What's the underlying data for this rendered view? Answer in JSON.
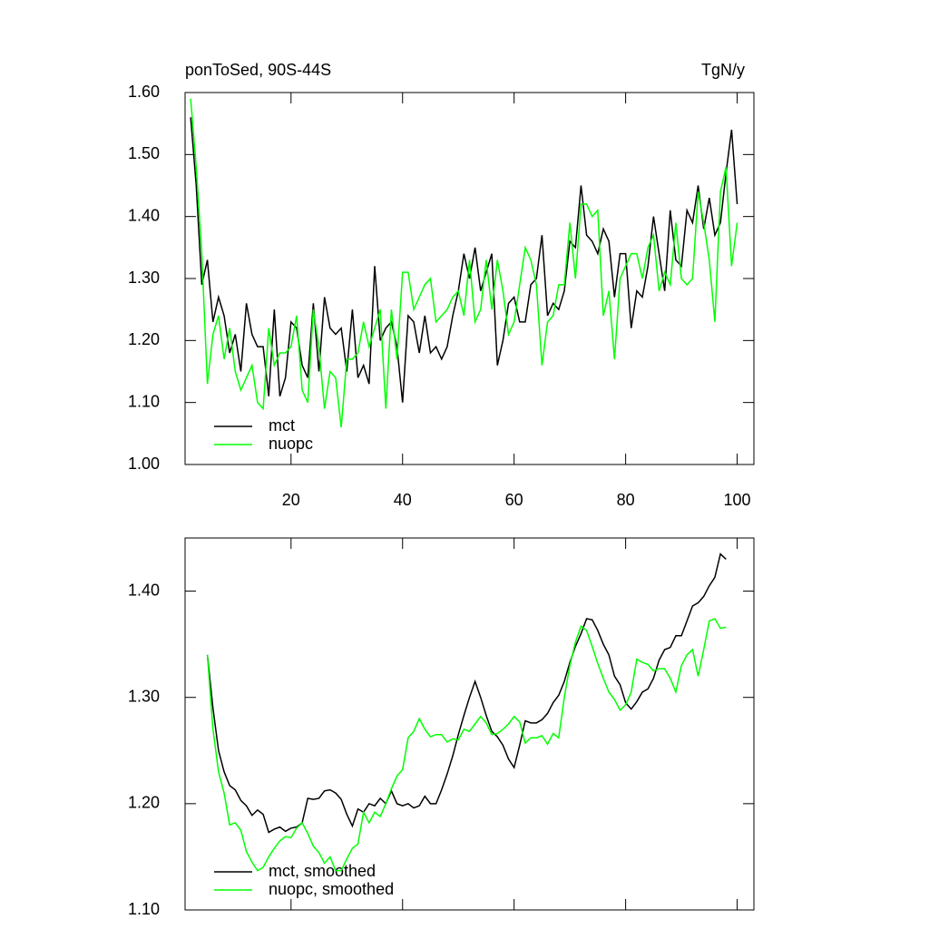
{
  "chart_data": [
    {
      "type": "line",
      "title": "ponToSed, 90S-44S",
      "units_label": "TgN/y",
      "xlim": [
        1,
        103
      ],
      "ylim": [
        1.0,
        1.6
      ],
      "xticks": [
        20,
        40,
        60,
        80,
        100
      ],
      "xtick_labels_shown": true,
      "yticks": [
        {
          "value": 1.0,
          "label": "1.00"
        },
        {
          "value": 1.1,
          "label": "1.10"
        },
        {
          "value": 1.2,
          "label": "1.20"
        },
        {
          "value": 1.3,
          "label": "1.30"
        },
        {
          "value": 1.4,
          "label": "1.40"
        },
        {
          "value": 1.5,
          "label": "1.50"
        },
        {
          "value": 1.6,
          "label": "1.60"
        }
      ],
      "legend": "lower left",
      "x": [
        2,
        3,
        4,
        5,
        6,
        7,
        8,
        9,
        10,
        11,
        12,
        13,
        14,
        15,
        16,
        17,
        18,
        19,
        20,
        21,
        22,
        23,
        24,
        25,
        26,
        27,
        28,
        29,
        30,
        31,
        32,
        33,
        34,
        35,
        36,
        37,
        38,
        39,
        40,
        41,
        42,
        43,
        44,
        45,
        46,
        47,
        48,
        49,
        50,
        51,
        52,
        53,
        54,
        55,
        56,
        57,
        58,
        59,
        60,
        61,
        62,
        63,
        64,
        65,
        66,
        67,
        68,
        69,
        70,
        71,
        72,
        73,
        74,
        75,
        76,
        77,
        78,
        79,
        80,
        81,
        82,
        83,
        84,
        85,
        86,
        87,
        88,
        89,
        90,
        91,
        92,
        93,
        94,
        95,
        96,
        97,
        98,
        99,
        100
      ],
      "series": [
        {
          "name": "mct",
          "color": "#000000",
          "values": [
            1.56,
            1.45,
            1.29,
            1.33,
            1.23,
            1.27,
            1.24,
            1.18,
            1.21,
            1.15,
            1.26,
            1.21,
            1.19,
            1.19,
            1.11,
            1.25,
            1.11,
            1.14,
            1.23,
            1.22,
            1.16,
            1.14,
            1.26,
            1.15,
            1.27,
            1.22,
            1.21,
            1.22,
            1.15,
            1.25,
            1.14,
            1.16,
            1.13,
            1.32,
            1.2,
            1.22,
            1.23,
            1.19,
            1.1,
            1.24,
            1.23,
            1.18,
            1.24,
            1.18,
            1.19,
            1.17,
            1.19,
            1.24,
            1.28,
            1.34,
            1.3,
            1.35,
            1.28,
            1.31,
            1.34,
            1.16,
            1.2,
            1.26,
            1.27,
            1.23,
            1.23,
            1.29,
            1.3,
            1.37,
            1.24,
            1.26,
            1.25,
            1.28,
            1.36,
            1.35,
            1.45,
            1.37,
            1.36,
            1.34,
            1.38,
            1.36,
            1.27,
            1.34,
            1.34,
            1.22,
            1.28,
            1.27,
            1.32,
            1.4,
            1.34,
            1.28,
            1.41,
            1.33,
            1.32,
            1.41,
            1.39,
            1.45,
            1.38,
            1.43,
            1.37,
            1.39,
            1.47,
            1.54,
            1.42
          ]
        },
        {
          "name": "nuopc",
          "color": "#00ff00",
          "values": [
            1.59,
            1.48,
            1.34,
            1.13,
            1.21,
            1.24,
            1.17,
            1.22,
            1.15,
            1.12,
            1.14,
            1.16,
            1.1,
            1.09,
            1.22,
            1.16,
            1.18,
            1.18,
            1.19,
            1.24,
            1.12,
            1.1,
            1.25,
            1.19,
            1.09,
            1.15,
            1.14,
            1.06,
            1.17,
            1.17,
            1.18,
            1.23,
            1.19,
            1.22,
            1.25,
            1.09,
            1.25,
            1.17,
            1.31,
            1.31,
            1.25,
            1.27,
            1.29,
            1.3,
            1.23,
            1.24,
            1.25,
            1.27,
            1.28,
            1.24,
            1.33,
            1.23,
            1.25,
            1.33,
            1.25,
            1.33,
            1.28,
            1.21,
            1.23,
            1.29,
            1.35,
            1.33,
            1.29,
            1.16,
            1.23,
            1.24,
            1.29,
            1.29,
            1.39,
            1.3,
            1.42,
            1.42,
            1.4,
            1.41,
            1.24,
            1.28,
            1.17,
            1.3,
            1.32,
            1.34,
            1.34,
            1.3,
            1.35,
            1.37,
            1.28,
            1.31,
            1.29,
            1.39,
            1.3,
            1.29,
            1.3,
            1.44,
            1.39,
            1.33,
            1.23,
            1.44,
            1.48,
            1.32,
            1.39
          ]
        }
      ]
    },
    {
      "type": "line",
      "xlim": [
        1,
        103
      ],
      "ylim": [
        1.1,
        1.45
      ],
      "xticks": [
        20,
        40,
        60,
        80,
        100
      ],
      "xtick_labels_shown": false,
      "yticks": [
        {
          "value": 1.1,
          "label": "1.10"
        },
        {
          "value": 1.2,
          "label": "1.20"
        },
        {
          "value": 1.3,
          "label": "1.30"
        },
        {
          "value": 1.4,
          "label": "1.40"
        }
      ],
      "legend": "lower left",
      "x": [
        5,
        6,
        7,
        8,
        9,
        10,
        11,
        12,
        13,
        14,
        15,
        16,
        17,
        18,
        19,
        20,
        21,
        22,
        23,
        24,
        25,
        26,
        27,
        28,
        29,
        30,
        31,
        32,
        33,
        34,
        35,
        36,
        37,
        38,
        39,
        40,
        41,
        42,
        43,
        44,
        45,
        46,
        47,
        48,
        49,
        50,
        51,
        52,
        53,
        54,
        55,
        56,
        57,
        58,
        59,
        60,
        61,
        62,
        63,
        64,
        65,
        66,
        67,
        68,
        69,
        70,
        71,
        72,
        73,
        74,
        75,
        76,
        77,
        78,
        79,
        80,
        81,
        82,
        83,
        84,
        85,
        86,
        87,
        88,
        89,
        90,
        91,
        92,
        93,
        94,
        95,
        96,
        97,
        98
      ],
      "series": [
        {
          "name": "mct, smoothed",
          "color": "#000000",
          "values": [
            1.34,
            1.29,
            1.25,
            1.23,
            1.217,
            1.213,
            1.203,
            1.198,
            1.189,
            1.194,
            1.19,
            1.173,
            1.176,
            1.178,
            1.174,
            1.177,
            1.178,
            1.182,
            1.205,
            1.204,
            1.205,
            1.212,
            1.213,
            1.21,
            1.204,
            1.19,
            1.179,
            1.195,
            1.192,
            1.2,
            1.198,
            1.205,
            1.2,
            1.212,
            1.2,
            1.198,
            1.2,
            1.196,
            1.198,
            1.207,
            1.2,
            1.2,
            1.213,
            1.228,
            1.245,
            1.265,
            1.283,
            1.3,
            1.315,
            1.3,
            1.283,
            1.268,
            1.263,
            1.255,
            1.242,
            1.234,
            1.255,
            1.278,
            1.276,
            1.276,
            1.279,
            1.285,
            1.295,
            1.302,
            1.315,
            1.333,
            1.348,
            1.36,
            1.374,
            1.373,
            1.363,
            1.35,
            1.34,
            1.32,
            1.312,
            1.295,
            1.289,
            1.296,
            1.305,
            1.308,
            1.318,
            1.335,
            1.345,
            1.347,
            1.358,
            1.358,
            1.372,
            1.386,
            1.389,
            1.395,
            1.405,
            1.413,
            1.435,
            1.43
          ]
        },
        {
          "name": "nuopc, smoothed",
          "color": "#00ff00",
          "values": [
            1.34,
            1.27,
            1.23,
            1.21,
            1.18,
            1.182,
            1.175,
            1.155,
            1.145,
            1.137,
            1.14,
            1.15,
            1.158,
            1.165,
            1.169,
            1.168,
            1.177,
            1.182,
            1.172,
            1.16,
            1.154,
            1.144,
            1.15,
            1.137,
            1.137,
            1.148,
            1.158,
            1.162,
            1.192,
            1.182,
            1.192,
            1.188,
            1.2,
            1.214,
            1.226,
            1.232,
            1.262,
            1.268,
            1.28,
            1.27,
            1.263,
            1.265,
            1.265,
            1.258,
            1.261,
            1.26,
            1.27,
            1.268,
            1.275,
            1.282,
            1.276,
            1.265,
            1.266,
            1.27,
            1.275,
            1.282,
            1.277,
            1.257,
            1.262,
            1.262,
            1.264,
            1.256,
            1.266,
            1.262,
            1.3,
            1.33,
            1.352,
            1.367,
            1.363,
            1.348,
            1.332,
            1.318,
            1.305,
            1.298,
            1.288,
            1.293,
            1.305,
            1.336,
            1.333,
            1.331,
            1.325,
            1.327,
            1.327,
            1.318,
            1.305,
            1.33,
            1.34,
            1.345,
            1.32,
            1.345,
            1.372,
            1.374,
            1.365,
            1.366
          ]
        }
      ]
    }
  ]
}
